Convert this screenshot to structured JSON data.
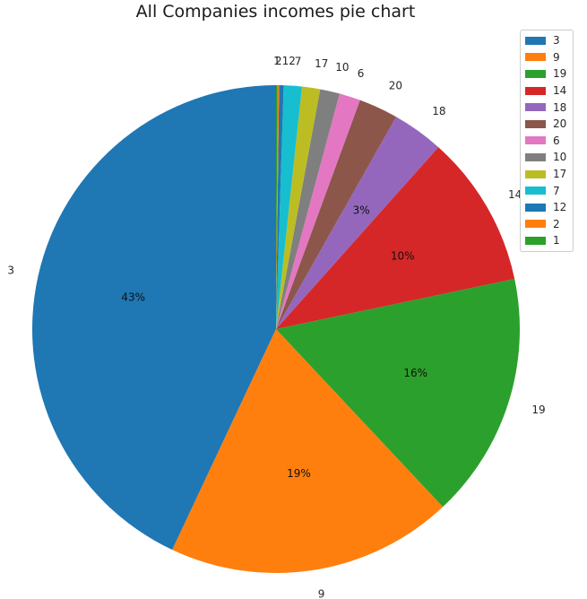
{
  "chart_data": {
    "type": "pie",
    "title": "All Companies incomes pie chart",
    "start_angle_deg": 90,
    "direction": "counterclockwise",
    "percent_threshold": 3,
    "legend_position": "top-right",
    "slices": [
      {
        "label": "3",
        "value": 43.0,
        "color": "#1f77b4"
      },
      {
        "label": "9",
        "value": 19.0,
        "color": "#ff7f0e"
      },
      {
        "label": "19",
        "value": 16.3,
        "color": "#2ca02c"
      },
      {
        "label": "14",
        "value": 10.1,
        "color": "#d62728"
      },
      {
        "label": "18",
        "value": 3.4,
        "color": "#9467bd"
      },
      {
        "label": "20",
        "value": 2.6,
        "color": "#8c564b"
      },
      {
        "label": "6",
        "value": 1.4,
        "color": "#e377c2"
      },
      {
        "label": "10",
        "value": 1.3,
        "color": "#7f7f7f"
      },
      {
        "label": "17",
        "value": 1.2,
        "color": "#bcbd22"
      },
      {
        "label": "7",
        "value": 1.2,
        "color": "#17becf"
      },
      {
        "label": "12",
        "value": 0.3,
        "color": "#1f77b4"
      },
      {
        "label": "2",
        "value": 0.1,
        "color": "#ff7f0e"
      },
      {
        "label": "1",
        "value": 0.1,
        "color": "#2ca02c"
      }
    ]
  }
}
